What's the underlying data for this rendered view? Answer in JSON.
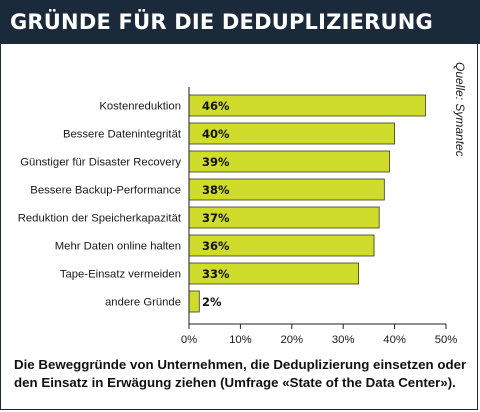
{
  "header": {
    "title": "GRÜNDE FÜR DIE DEDUPLIZIERUNG"
  },
  "source": "Quelle: Symantec",
  "caption": "Die Beweggründe von Unternehmen, die Deduplizierung einsetzen oder den Einsatz in Erwägung ziehen (Umfrage «State of the Data Center»).",
  "colors": {
    "bar": "#cfdc2b",
    "header_bg": "#1b2a3a",
    "axis": "#222222"
  },
  "chart_data": {
    "type": "bar",
    "orientation": "horizontal",
    "categories": [
      "Kostenreduktion",
      "Bessere Datenintegrität",
      "Günstiger für Disaster Recovery",
      "Bessere Backup-Performance",
      "Reduktion der Speicherkapazität",
      "Mehr Daten online halten",
      "Tape-Einsatz vermeiden",
      "andere Gründe"
    ],
    "values": [
      46,
      40,
      39,
      38,
      37,
      36,
      33,
      2
    ],
    "value_labels": [
      "46%",
      "40%",
      "39%",
      "38%",
      "37%",
      "36%",
      "33%",
      "2%"
    ],
    "xlim": [
      0,
      50
    ],
    "x_ticks": [
      "0%",
      "10%",
      "20%",
      "30%",
      "40%",
      "50%"
    ],
    "grid": false,
    "legend": "none"
  }
}
